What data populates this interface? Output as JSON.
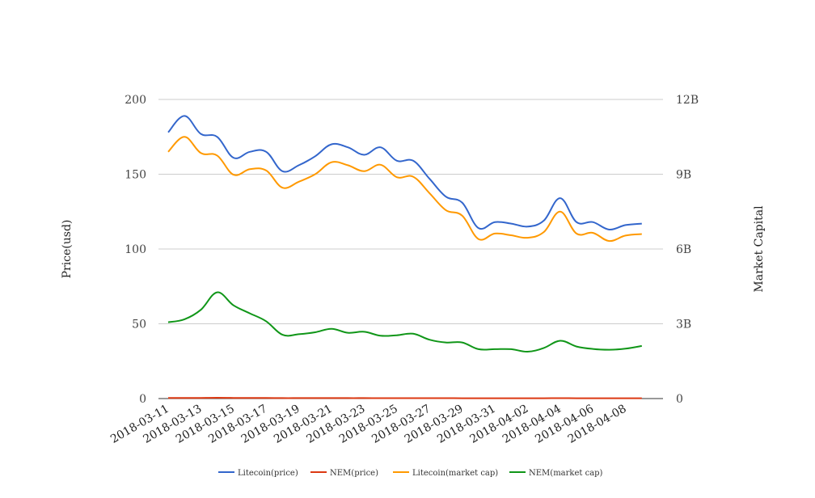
{
  "chart_data": {
    "type": "line",
    "ylabel_left": "Price(usd)",
    "ylabel_right": "Market Capital",
    "y_left_lim": [
      0,
      200
    ],
    "y_left_ticks": [
      "0",
      "50",
      "100",
      "150",
      "200"
    ],
    "y_right_lim": [
      0,
      12000000000
    ],
    "y_right_ticks": [
      "0",
      "3B",
      "6B",
      "9B",
      "12B"
    ],
    "grid": true,
    "legend_position": "bottom",
    "x_tick_labels": [
      "2018-03-11",
      "2018-03-13",
      "2018-03-15",
      "2018-03-17",
      "2018-03-19",
      "2018-03-21",
      "2018-03-23",
      "2018-03-25",
      "2018-03-27",
      "2018-03-29",
      "2018-03-31",
      "2018-04-02",
      "2018-04-04",
      "2018-04-06",
      "2018-04-08"
    ],
    "x": [
      "2018-03-11",
      "2018-03-12",
      "2018-03-13",
      "2018-03-14",
      "2018-03-15",
      "2018-03-16",
      "2018-03-17",
      "2018-03-18",
      "2018-03-19",
      "2018-03-20",
      "2018-03-21",
      "2018-03-22",
      "2018-03-23",
      "2018-03-24",
      "2018-03-25",
      "2018-03-26",
      "2018-03-27",
      "2018-03-28",
      "2018-03-29",
      "2018-03-30",
      "2018-03-31",
      "2018-04-01",
      "2018-04-02",
      "2018-04-03",
      "2018-04-04",
      "2018-04-05",
      "2018-04-06",
      "2018-04-07",
      "2018-04-08",
      "2018-04-09"
    ],
    "series": [
      {
        "name": "Litecoin(price)",
        "color": "#3366cc",
        "axis": "left",
        "values": [
          178,
          189,
          177,
          175,
          161,
          165,
          165,
          152,
          156,
          162,
          170,
          168,
          163,
          168,
          159,
          159,
          147,
          135,
          131,
          114,
          118,
          117,
          115,
          119,
          134,
          118,
          118,
          113,
          116,
          117
        ]
      },
      {
        "name": "NEM(price)",
        "color": "#dc3912",
        "axis": "left",
        "values": [
          0.36,
          0.38,
          0.42,
          0.52,
          0.44,
          0.39,
          0.36,
          0.3,
          0.3,
          0.31,
          0.32,
          0.3,
          0.3,
          0.29,
          0.28,
          0.28,
          0.26,
          0.25,
          0.24,
          0.22,
          0.22,
          0.22,
          0.21,
          0.22,
          0.25,
          0.23,
          0.22,
          0.22,
          0.22,
          0.23
        ]
      },
      {
        "name": "Litecoin(market cap)",
        "color": "#ff9900",
        "axis": "right",
        "values": [
          9900000000,
          10500000000,
          9850000000,
          9750000000,
          8980000000,
          9200000000,
          9150000000,
          8460000000,
          8700000000,
          9000000000,
          9480000000,
          9360000000,
          9120000000,
          9380000000,
          8880000000,
          8900000000,
          8240000000,
          7560000000,
          7340000000,
          6400000000,
          6620000000,
          6550000000,
          6450000000,
          6680000000,
          7500000000,
          6620000000,
          6650000000,
          6320000000,
          6540000000,
          6600000000
        ]
      },
      {
        "name": "NEM(market cap)",
        "color": "#109618",
        "axis": "right",
        "values": [
          3060000000,
          3180000000,
          3560000000,
          4260000000,
          3740000000,
          3420000000,
          3100000000,
          2560000000,
          2580000000,
          2660000000,
          2800000000,
          2640000000,
          2680000000,
          2520000000,
          2540000000,
          2600000000,
          2360000000,
          2250000000,
          2250000000,
          1980000000,
          1980000000,
          1980000000,
          1880000000,
          2030000000,
          2320000000,
          2090000000,
          1990000000,
          1960000000,
          2000000000,
          2110000000
        ]
      }
    ]
  }
}
